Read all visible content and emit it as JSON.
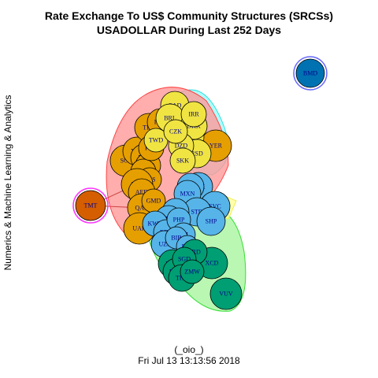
{
  "title_line1": "Rate Exchange To US$ Community Structures (SRCSs)",
  "title_line2": "USADOLLAR During Last 252 Days",
  "ylabel": "Numerics & Machine Learning & Analytics",
  "caption_line1": "(_oio_)",
  "caption_line2": "Fri Jul 13 13:13:56 2018",
  "colors": {
    "orange": "#E69F00",
    "yellow": "#F0E442",
    "blue": "#56B4E9",
    "green": "#009E73",
    "red_node": "#D55E00",
    "bmd_node": "#0072B2",
    "hull_red": "#FF9999",
    "hull_cyan": "#99FFFF",
    "hull_green": "#A8F5A0",
    "label": "#00008B"
  },
  "nodes": [
    {
      "id": "BMD",
      "group": "bmd_node"
    },
    {
      "id": "TMT",
      "group": "red_node"
    },
    {
      "id": "CAD",
      "group": "yellow"
    },
    {
      "id": "YER",
      "group": "orange"
    },
    {
      "id": "SOS",
      "group": "orange"
    },
    {
      "id": "XOF",
      "group": "orange"
    },
    {
      "id": "VEF",
      "group": "orange"
    },
    {
      "id": "TND",
      "group": "orange"
    },
    {
      "id": "COP",
      "group": "orange"
    },
    {
      "id": "KES",
      "group": "orange"
    },
    {
      "id": "SAR",
      "group": "orange"
    },
    {
      "id": "AED",
      "group": "orange"
    },
    {
      "id": "QAR",
      "group": "orange"
    },
    {
      "id": "GMD",
      "group": "orange"
    },
    {
      "id": "UAH",
      "group": "orange"
    },
    {
      "id": "TRY",
      "group": "orange"
    },
    {
      "id": "RUB",
      "group": "orange"
    },
    {
      "id": "PGK",
      "group": "orange"
    },
    {
      "id": "TWD",
      "group": "yellow"
    },
    {
      "id": "BRL",
      "group": "yellow"
    },
    {
      "id": "MKD",
      "group": "yellow"
    },
    {
      "id": "RSD",
      "group": "yellow"
    },
    {
      "id": "DKK",
      "group": "yellow"
    },
    {
      "id": "DZD",
      "group": "yellow"
    },
    {
      "id": "SKK",
      "group": "yellow"
    },
    {
      "id": "CZK",
      "group": "yellow"
    },
    {
      "id": "IRR",
      "group": "yellow"
    },
    {
      "id": "HRK",
      "group": "blue"
    },
    {
      "id": "LAK",
      "group": "blue"
    },
    {
      "id": "MXN",
      "group": "blue"
    },
    {
      "id": "SVC",
      "group": "blue"
    },
    {
      "id": "STD",
      "group": "blue"
    },
    {
      "id": "SHP",
      "group": "blue"
    },
    {
      "id": "TXS",
      "group": "blue"
    },
    {
      "id": "LYD",
      "group": "blue"
    },
    {
      "id": "KWD",
      "group": "blue"
    },
    {
      "id": "BIF",
      "group": "blue"
    },
    {
      "id": "BDT",
      "group": "blue"
    },
    {
      "id": "UZS",
      "group": "blue"
    },
    {
      "id": "PHP",
      "group": "blue"
    },
    {
      "id": "HNL",
      "group": "blue"
    },
    {
      "id": "BIB",
      "group": "blue"
    },
    {
      "id": "PAB",
      "group": "blue"
    },
    {
      "id": "XCD",
      "group": "green"
    },
    {
      "id": "VUV",
      "group": "green"
    },
    {
      "id": "SRD",
      "group": "green"
    },
    {
      "id": "UGX",
      "group": "green"
    },
    {
      "id": "MUR",
      "group": "green"
    },
    {
      "id": "NPR",
      "group": "green"
    },
    {
      "id": "SGD",
      "group": "green"
    },
    {
      "id": "THB",
      "group": "green"
    },
    {
      "id": "ZMW",
      "group": "green"
    }
  ]
}
